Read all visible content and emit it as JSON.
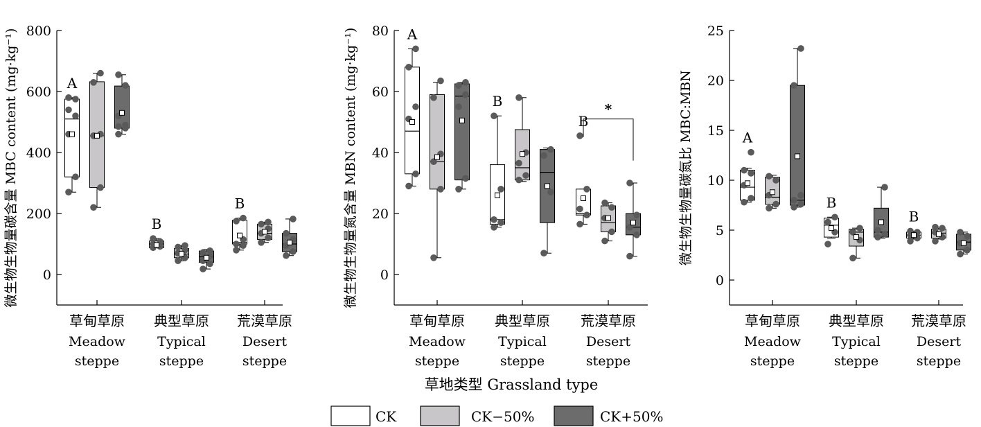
{
  "figure": {
    "x_title": "草地类型 Grassland type",
    "legend": [
      {
        "label": "CK",
        "color": "#ffffff"
      },
      {
        "label": "CK−50%",
        "color": "#c8c6c8"
      },
      {
        "label": "CK+50%",
        "color": "#6c6c6c"
      }
    ],
    "point_color": "#5a5a5a"
  },
  "chart_data": [
    {
      "type": "box",
      "ylabel": "微生物生物量碳含量 MBC content (mg·kg⁻¹)",
      "ylim": [
        -100,
        800
      ],
      "yticks": [
        0,
        200,
        400,
        600,
        800
      ],
      "categories": [
        {
          "zh": "草甸草原",
          "en1": "Meadow",
          "en2": "steppe"
        },
        {
          "zh": "典型草原",
          "en1": "Typical",
          "en2": "steppe"
        },
        {
          "zh": "荒漠草原",
          "en1": "Desert",
          "en2": "steppe"
        }
      ],
      "letters": [
        "A",
        "B",
        "B"
      ],
      "bracket": null,
      "boxes": [
        [
          {
            "q1": 320,
            "median": 510,
            "q3": 575,
            "whisker_low": 270,
            "whisker_high": 580,
            "mean": 460,
            "points": [
              270,
              320,
              460,
              520,
              540,
              575,
              580
            ]
          },
          {
            "q1": 285,
            "median": 455,
            "q3": 632,
            "whisker_low": 220,
            "whisker_high": 660,
            "mean": 455,
            "points": [
              220,
              285,
              455,
              460,
              630,
              660
            ]
          },
          {
            "q1": 480,
            "median": 480,
            "q3": 618,
            "whisker_low": 460,
            "whisker_high": 655,
            "mean": 530,
            "points": [
              460,
              480,
              485,
              490,
              520,
              620,
              655
            ]
          }
        ],
        [
          {
            "q1": 88,
            "median": 100,
            "q3": 110,
            "whisker_low": 88,
            "whisker_high": 118,
            "mean": 97,
            "points": [
              88,
              92,
              100,
              108,
              118
            ]
          },
          {
            "q1": 55,
            "median": 67,
            "q3": 85,
            "whisker_low": 45,
            "whisker_high": 95,
            "mean": 68,
            "points": [
              45,
              55,
              70,
              80,
              90,
              95
            ]
          },
          {
            "q1": 40,
            "median": 58,
            "q3": 77,
            "whisker_low": 18,
            "whisker_high": 82,
            "mean": 55,
            "points": [
              18,
              35,
              45,
              60,
              72,
              78
            ]
          }
        ],
        [
          {
            "q1": 100,
            "median": 105,
            "q3": 178,
            "whisker_low": 80,
            "whisker_high": 185,
            "mean": 128,
            "points": [
              80,
              95,
              100,
              115,
              175,
              185
            ]
          },
          {
            "q1": 115,
            "median": 135,
            "q3": 165,
            "whisker_low": 105,
            "whisker_high": 172,
            "mean": 140,
            "points": [
              105,
              120,
              135,
              150,
              165,
              172
            ]
          },
          {
            "q1": 75,
            "median": 100,
            "q3": 135,
            "whisker_low": 62,
            "whisker_high": 182,
            "mean": 105,
            "points": [
              62,
              75,
              95,
              115,
              135,
              182
            ]
          }
        ]
      ]
    },
    {
      "type": "box",
      "ylabel": "微生物生物量氮含量 MBN content (mg·kg⁻¹)",
      "ylim": [
        -10,
        80
      ],
      "yticks": [
        0,
        20,
        40,
        60,
        80
      ],
      "categories": [
        {
          "zh": "草甸草原",
          "en1": "Meadow",
          "en2": "steppe"
        },
        {
          "zh": "典型草原",
          "en1": "Typical",
          "en2": "steppe"
        },
        {
          "zh": "荒漠草原",
          "en1": "Desert",
          "en2": "steppe"
        }
      ],
      "letters": [
        "A",
        "B",
        "B"
      ],
      "bracket": {
        "label": "*",
        "group": 2,
        "from_series": 0,
        "to_series": 2,
        "y": 51
      },
      "boxes": [
        [
          {
            "q1": 33,
            "median": 47,
            "q3": 68,
            "whisker_low": 29,
            "whisker_high": 74,
            "mean": 50,
            "points": [
              29,
              33,
              51,
              55,
              68,
              74
            ]
          },
          {
            "q1": 28,
            "median": 37,
            "q3": 59,
            "whisker_low": 5.5,
            "whisker_high": 63,
            "mean": 38.5,
            "points": [
              5.5,
              28,
              37,
              39.5,
              58,
              63.5
            ]
          },
          {
            "q1": 31,
            "median": 58.5,
            "q3": 62.5,
            "whisker_low": 28,
            "whisker_high": 63,
            "mean": 50.5,
            "points": [
              28,
              31.5,
              55,
              59,
              62,
              63
            ]
          }
        ],
        [
          {
            "q1": 16.5,
            "median": 18,
            "q3": 36,
            "whisker_low": 15.5,
            "whisker_high": 52,
            "mean": 26,
            "points": [
              15.5,
              17,
              18,
              28,
              52
            ]
          },
          {
            "q1": 31,
            "median": 35,
            "q3": 47.5,
            "whisker_low": 30.5,
            "whisker_high": 58,
            "mean": 39.5,
            "points": [
              31,
              32.5,
              36.5,
              40,
              58
            ]
          },
          {
            "q1": 17,
            "median": 33.5,
            "q3": 41,
            "whisker_low": 7,
            "whisker_high": 41.5,
            "mean": 29,
            "points": [
              7,
              27,
              39,
              41
            ]
          }
        ],
        [
          {
            "q1": 19.5,
            "median": 20,
            "q3": 28,
            "whisker_low": 16.5,
            "whisker_high": 28,
            "mean": 25,
            "points": [
              16.5,
              19.5,
              21.5,
              28,
              45.5
            ]
          },
          {
            "q1": 14,
            "median": 17,
            "q3": 22.5,
            "whisker_low": 11,
            "whisker_high": 23.5,
            "mean": 18.5,
            "points": [
              11,
              14,
              18.5,
              22,
              23.5
            ]
          },
          {
            "q1": 13,
            "median": 15.5,
            "q3": 20,
            "whisker_low": 6,
            "whisker_high": 30,
            "mean": 17,
            "points": [
              6,
              13,
              15.5,
              19.5,
              30
            ]
          }
        ]
      ]
    },
    {
      "type": "box",
      "ylabel": "微生物生物量碳氮比 MBC:MBN",
      "ylim": [
        -2.5,
        25
      ],
      "yticks": [
        0,
        5,
        10,
        15,
        20,
        25
      ],
      "categories": [
        {
          "zh": "草甸草原",
          "en1": "Meadow",
          "en2": "steppe"
        },
        {
          "zh": "典型草原",
          "en1": "Typical",
          "en2": "steppe"
        },
        {
          "zh": "荒漠草原",
          "en1": "Desert",
          "en2": "steppe"
        }
      ],
      "letters": [
        "A",
        "B",
        "B"
      ],
      "bracket": null,
      "boxes": [
        [
          {
            "q1": 8,
            "median": 9.3,
            "q3": 11,
            "whisker_low": 7.8,
            "whisker_high": 11.2,
            "mean": 9.7,
            "points": [
              7.8,
              8.2,
              9.5,
              10.7,
              11,
              12.8
            ]
          },
          {
            "q1": 7.6,
            "median": 8.3,
            "q3": 10.3,
            "whisker_low": 7.2,
            "whisker_high": 10.5,
            "mean": 8.8,
            "points": [
              7.2,
              7.6,
              8.5,
              10,
              10.4
            ]
          },
          {
            "q1": 7.5,
            "median": 8,
            "q3": 19.5,
            "whisker_low": 7.3,
            "whisker_high": 23.2,
            "mean": 12.4,
            "points": [
              7.3,
              7.6,
              8,
              8.5,
              19.5,
              23.2
            ]
          }
        ],
        [
          {
            "q1": 4.3,
            "median": 5.5,
            "q3": 6.2,
            "whisker_low": 4.2,
            "whisker_high": 6.3,
            "mean": 5.2,
            "points": [
              3.6,
              4.8,
              5.8,
              6.3
            ]
          },
          {
            "q1": 3.4,
            "median": 4.8,
            "q3": 5.1,
            "whisker_low": 2.2,
            "whisker_high": 5.2,
            "mean": 4.3,
            "points": [
              2.2,
              4,
              4.8,
              5.2
            ]
          },
          {
            "q1": 4.3,
            "median": 4.8,
            "q3": 7.2,
            "whisker_low": 4.2,
            "whisker_high": 9.3,
            "mean": 5.8,
            "points": [
              4.3,
              4.6,
              5,
              9.3
            ]
          }
        ],
        [
          {
            "q1": 4.2,
            "median": 4.5,
            "q3": 4.8,
            "whisker_low": 4.1,
            "whisker_high": 4.9,
            "mean": 4.5,
            "points": [
              3.9,
              4.2,
              4.5,
              4.8,
              4.9
            ]
          },
          {
            "q1": 4.2,
            "median": 4.7,
            "q3": 5.1,
            "whisker_low": 4.1,
            "whisker_high": 5.2,
            "mean": 4.6,
            "points": [
              3.9,
              4.3,
              4.8,
              5.2,
              5.3
            ]
          },
          {
            "q1": 3,
            "median": 3.8,
            "q3": 4.6,
            "whisker_low": 2.6,
            "whisker_high": 4.8,
            "mean": 3.7,
            "points": [
              2.6,
              3,
              3.7,
              4.4,
              4.8
            ]
          }
        ]
      ]
    }
  ]
}
